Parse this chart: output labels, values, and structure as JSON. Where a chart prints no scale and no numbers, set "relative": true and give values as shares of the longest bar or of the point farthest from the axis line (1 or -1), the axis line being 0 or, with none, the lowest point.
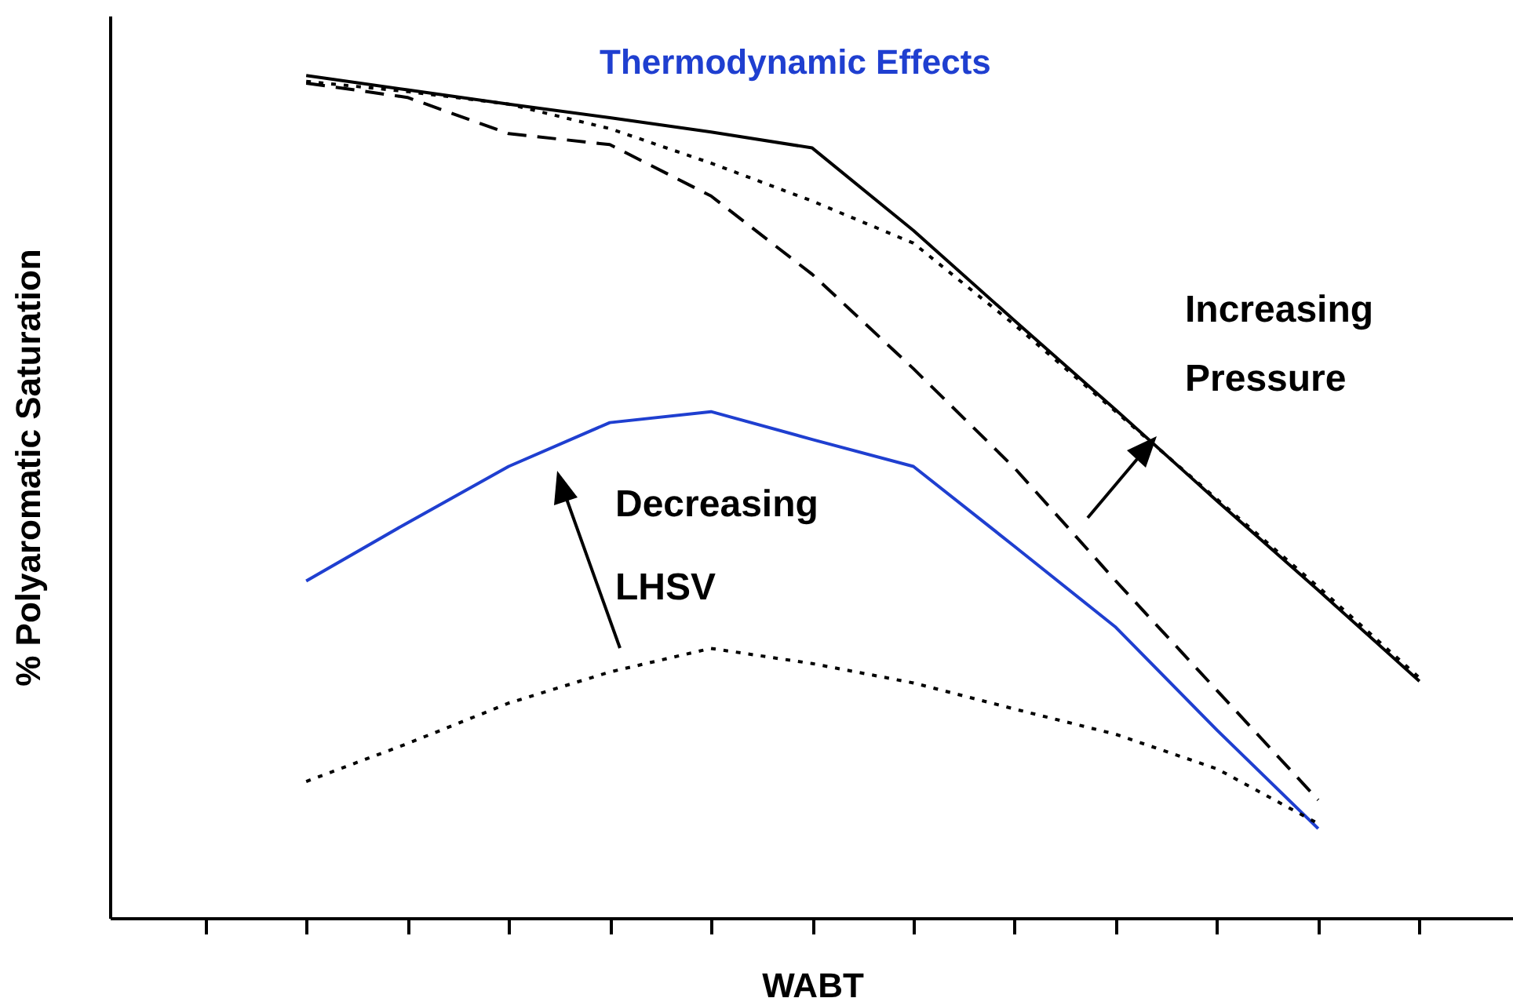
{
  "chart_data": {
    "type": "line",
    "title": "Thermodynamic Effects",
    "xlabel": "WABT",
    "ylabel": "% Polyaromatic Saturation",
    "relative": true,
    "categories": [
      null,
      null,
      null,
      null,
      null,
      null,
      null,
      null,
      null,
      null,
      null,
      null,
      null
    ],
    "annotations": [
      "Increasing Pressure",
      "Decreasing LHSV"
    ],
    "series": [
      {
        "color": "#000000",
        "line_style": "solid",
        "values": [
          null,
          1.0,
          0.983,
          0.966,
          0.95,
          0.933,
          0.914,
          0.816,
          0.709,
          0.603,
          0.495,
          0.389,
          0.281
        ]
      },
      {
        "color": "#000000",
        "line_style": "dotted",
        "values": [
          null,
          0.993,
          0.981,
          0.966,
          0.937,
          0.896,
          0.851,
          0.801,
          0.704,
          0.601,
          0.497,
          0.393,
          0.285
        ]
      },
      {
        "color": "#000000",
        "line_style": "dashed",
        "values": [
          null,
          0.991,
          0.974,
          0.931,
          0.918,
          0.857,
          0.764,
          0.652,
          0.534,
          0.4,
          0.27,
          0.14,
          null
        ]
      },
      {
        "color": "#1f3fd0",
        "line_style": "solid",
        "values": [
          null,
          0.4,
          0.469,
          0.536,
          0.588,
          0.601,
          0.568,
          0.536,
          0.441,
          0.345,
          0.223,
          0.106,
          null
        ]
      },
      {
        "color": "#000000",
        "line_style": "dotted",
        "values": [
          null,
          0.162,
          0.207,
          0.255,
          0.292,
          0.32,
          0.302,
          0.279,
          0.248,
          0.218,
          0.177,
          0.112,
          null
        ]
      }
    ]
  }
}
